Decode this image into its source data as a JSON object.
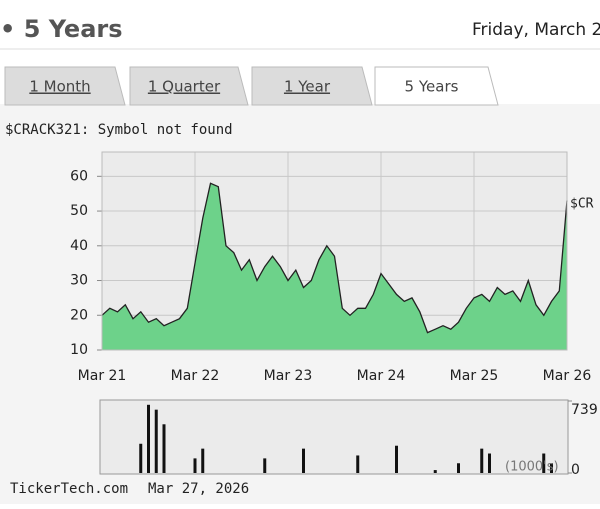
{
  "header": {
    "title": "• 5 Years",
    "date": "Friday, March 2"
  },
  "tabs": [
    "1 Month",
    "1 Quarter",
    "1 Year",
    "5 Years"
  ],
  "active_tab": 3,
  "chart": {
    "type": "area",
    "subtitle": "$CRACK321: Symbol not found",
    "series_label": "$CR",
    "color": "#6dd28a",
    "values": [
      20,
      22,
      21,
      23,
      19,
      21,
      18,
      19,
      17,
      18,
      19,
      22,
      35,
      48,
      58,
      57,
      40,
      38,
      33,
      36,
      30,
      34,
      37,
      34,
      30,
      33,
      28,
      30,
      36,
      40,
      37,
      22,
      20,
      22,
      22,
      26,
      32,
      29,
      26,
      24,
      25,
      21,
      15,
      16,
      17,
      16,
      18,
      22,
      25,
      26,
      24,
      28,
      26,
      27,
      24,
      30,
      23,
      20,
      24,
      27,
      53
    ],
    "xlim": [
      0,
      60
    ],
    "xticks": [
      {
        "value": 0,
        "label": "Mar 21"
      },
      {
        "value": 12,
        "label": "Mar 22"
      },
      {
        "value": 24,
        "label": "Mar 23"
      },
      {
        "value": 36,
        "label": "Mar 24"
      },
      {
        "value": 48,
        "label": "Mar 25"
      },
      {
        "value": 60,
        "label": "Mar 26"
      }
    ],
    "ylim": [
      10,
      67
    ],
    "yticks": [
      10,
      20,
      30,
      40,
      50,
      60
    ],
    "grid": true
  },
  "volume": {
    "type": "bar",
    "unit_label": "(1000's)",
    "color": "#111111",
    "values": [
      0,
      0,
      0,
      0,
      0,
      300,
      700,
      650,
      500,
      0,
      0,
      0,
      150,
      250,
      0,
      0,
      0,
      0,
      0,
      0,
      0,
      150,
      0,
      0,
      0,
      0,
      250,
      0,
      0,
      0,
      0,
      0,
      0,
      180,
      0,
      0,
      0,
      0,
      280,
      0,
      0,
      0,
      0,
      30,
      0,
      0,
      100,
      0,
      0,
      250,
      200,
      0,
      0,
      0,
      0,
      0,
      0,
      200,
      100,
      0,
      0
    ],
    "ylim": [
      0,
      739
    ],
    "yticks": [
      0,
      739
    ]
  },
  "footer": {
    "source": "TickerTech.com",
    "date": "Mar 27, 2026"
  }
}
